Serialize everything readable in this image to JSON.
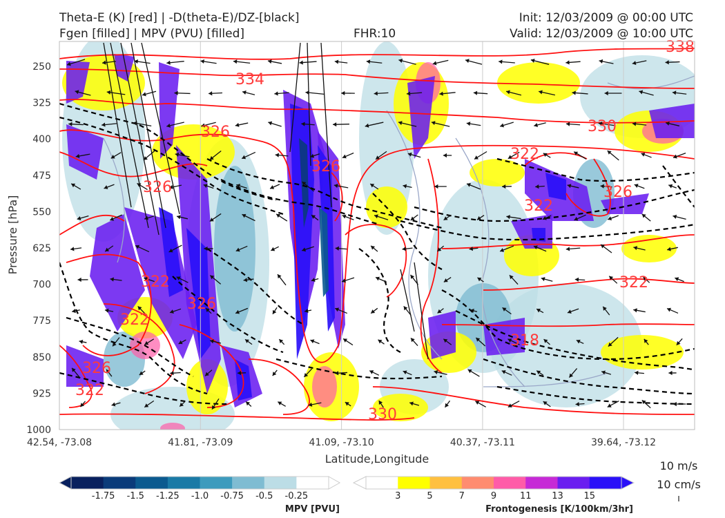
{
  "header": {
    "line1_left": "Theta-E (K) [red] | -D(theta-E)/DZ-[black]",
    "line2_left": "Fgen [filled] | MPV (PVU) [filled]",
    "fhr": "FHR:10",
    "init": "Init: 12/03/2009 @ 00:00 UTC",
    "valid": "Valid: 12/03/2009 @ 10:00 UTC"
  },
  "chart_data": {
    "type": "cross-section",
    "xlabel": "Latitude,Longitude",
    "ylabel": "Pressure [hPa]",
    "x_ticks": [
      "42.54, -73.08",
      "41.81, -73.09",
      "41.09, -73.10",
      "40.37, -73.11",
      "39.64, -73.12"
    ],
    "y_ticks": [
      "250",
      "325",
      "400",
      "475",
      "550",
      "625",
      "700",
      "775",
      "850",
      "925",
      "1000"
    ],
    "ylim": [
      1000,
      190
    ],
    "grid": true,
    "theta_e_contour_labels": [
      "338",
      "334",
      "330",
      "326",
      "326",
      "322",
      "322",
      "326",
      "322",
      "322",
      "326",
      "322",
      "318",
      "330",
      "326",
      "322",
      "326"
    ],
    "mpv_colorbar": {
      "label": "MPV [PVU]",
      "ticks": [
        "-1.75",
        "-1.5",
        "-1.25",
        "-1.0",
        "-0.75",
        "-0.5",
        "-0.25"
      ],
      "colors": [
        "#08205e",
        "#0a3b7a",
        "#0b5a8f",
        "#1a7aa6",
        "#3d9bbd",
        "#7fbcd2",
        "#bcdde6",
        "#ffffff"
      ]
    },
    "fgen_colorbar": {
      "label": "Frontogenesis [K/100km/3hr]",
      "ticks": [
        "3",
        "5",
        "7",
        "9",
        "11",
        "13",
        "15"
      ],
      "colors": [
        "#ffffff",
        "#ffff00",
        "#ffc040",
        "#ff8c70",
        "#ff5ca8",
        "#c62ad6",
        "#6a1ef0",
        "#2a10f8"
      ]
    },
    "wind_reference": [
      "10 m/s",
      "10 cm/s"
    ]
  }
}
